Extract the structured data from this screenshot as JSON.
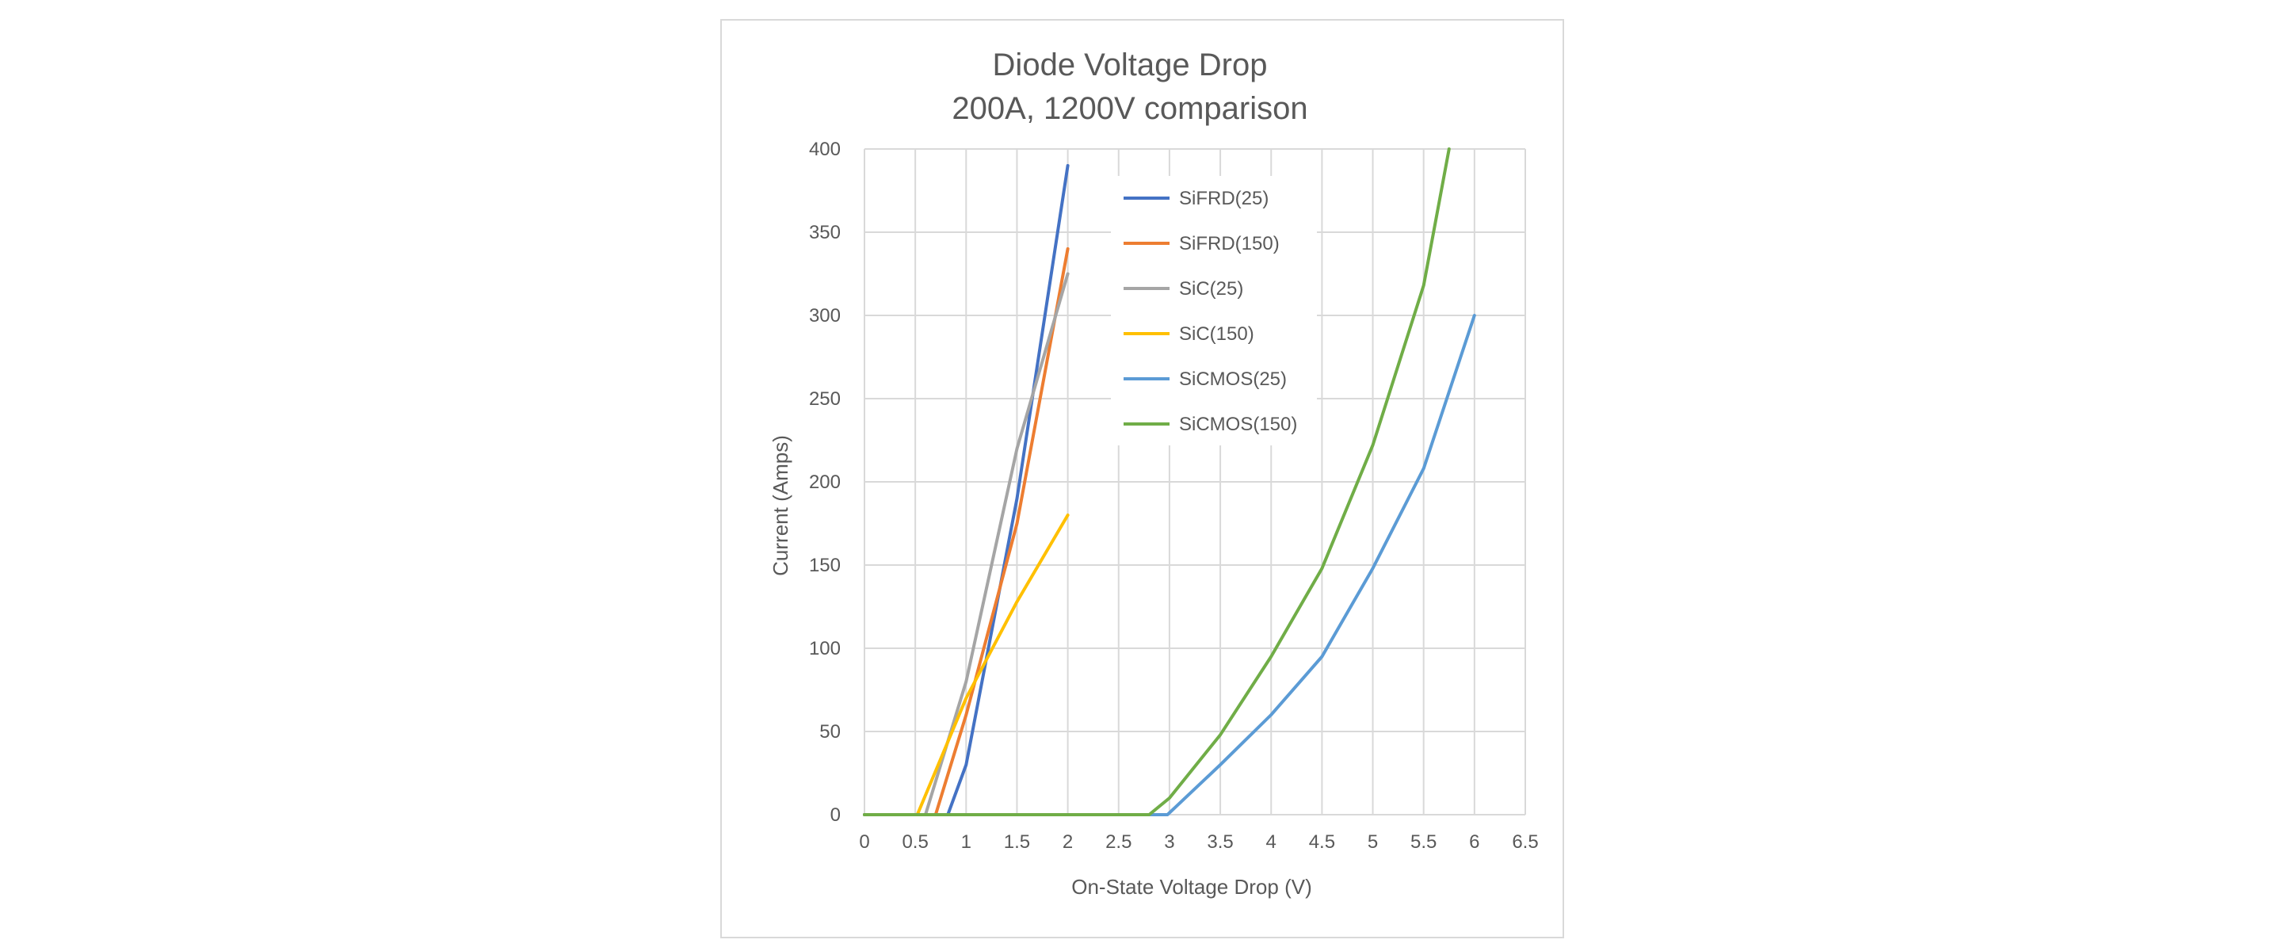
{
  "chart_data": {
    "type": "line",
    "title": "Diode Voltage Drop",
    "subtitle": "200A, 1200V comparison",
    "xlabel": "On-State Voltage Drop (V)",
    "ylabel": "Current (Amps)",
    "xlim": [
      0,
      6.5
    ],
    "ylim": [
      0,
      400
    ],
    "x_ticks": [
      "0",
      "0.5",
      "1",
      "1.5",
      "2",
      "2.5",
      "3",
      "3.5",
      "4",
      "4.5",
      "5",
      "5.5",
      "6",
      "6.5"
    ],
    "y_ticks": [
      "0",
      "50",
      "100",
      "150",
      "200",
      "250",
      "300",
      "350",
      "400"
    ],
    "grid": true,
    "legend_position": "top-right",
    "series": [
      {
        "name": "SiFRD(25)",
        "color": "#4472c4",
        "points": [
          [
            0,
            0
          ],
          [
            0.82,
            0
          ],
          [
            1.0,
            30
          ],
          [
            1.5,
            190
          ],
          [
            2.0,
            390
          ]
        ]
      },
      {
        "name": "SiFRD(150)",
        "color": "#ed7d31",
        "points": [
          [
            0,
            0
          ],
          [
            0.7,
            0
          ],
          [
            1.0,
            60
          ],
          [
            1.5,
            175
          ],
          [
            2.0,
            340
          ]
        ]
      },
      {
        "name": "SiC(25)",
        "color": "#a5a5a5",
        "points": [
          [
            0,
            0
          ],
          [
            0.6,
            0
          ],
          [
            1.0,
            80
          ],
          [
            1.5,
            220
          ],
          [
            2.0,
            325
          ]
        ]
      },
      {
        "name": "SiC(150)",
        "color": "#ffc000",
        "points": [
          [
            0,
            0
          ],
          [
            0.52,
            0
          ],
          [
            1.0,
            70
          ],
          [
            1.5,
            128
          ],
          [
            2.0,
            180
          ]
        ]
      },
      {
        "name": "SiCMOS(25)",
        "color": "#5b9bd5",
        "points": [
          [
            0,
            0
          ],
          [
            2.98,
            0
          ],
          [
            3.5,
            30
          ],
          [
            4.0,
            60
          ],
          [
            4.5,
            95
          ],
          [
            5.0,
            148
          ],
          [
            5.5,
            208
          ],
          [
            6.0,
            300
          ]
        ]
      },
      {
        "name": "SiCMOS(150)",
        "color": "#70ad47",
        "points": [
          [
            0,
            0
          ],
          [
            2.8,
            0
          ],
          [
            3.0,
            10
          ],
          [
            3.5,
            48
          ],
          [
            4.0,
            95
          ],
          [
            4.5,
            148
          ],
          [
            5.0,
            222
          ],
          [
            5.5,
            318
          ],
          [
            5.75,
            400
          ]
        ]
      }
    ]
  }
}
